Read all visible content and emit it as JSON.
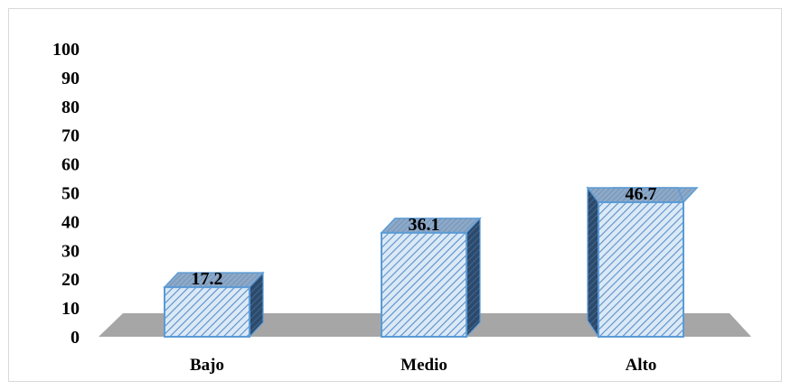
{
  "chart_data": {
    "type": "bar",
    "title": "",
    "xlabel": "",
    "ylabel": "",
    "categories": [
      "Bajo",
      "Medio",
      "Alto"
    ],
    "values": [
      17.2,
      36.1,
      46.7
    ],
    "data_labels": [
      "17.2",
      "36.1",
      "46.7"
    ],
    "ylim": [
      0,
      100
    ],
    "yticks": [
      "0",
      "10",
      "20",
      "30",
      "40",
      "50",
      "60",
      "70",
      "80",
      "90",
      "100"
    ],
    "grid": false,
    "legend": "none",
    "style": "3d-column",
    "colors": {
      "bar_fill": "#dbe9f7",
      "bar_hatch": "#5b8fc7",
      "bar_edge": "#5b9bd5",
      "bar_top": "#8da9c8",
      "bar_side": "#2b4a6d",
      "floor": "#a6a6a6"
    }
  }
}
